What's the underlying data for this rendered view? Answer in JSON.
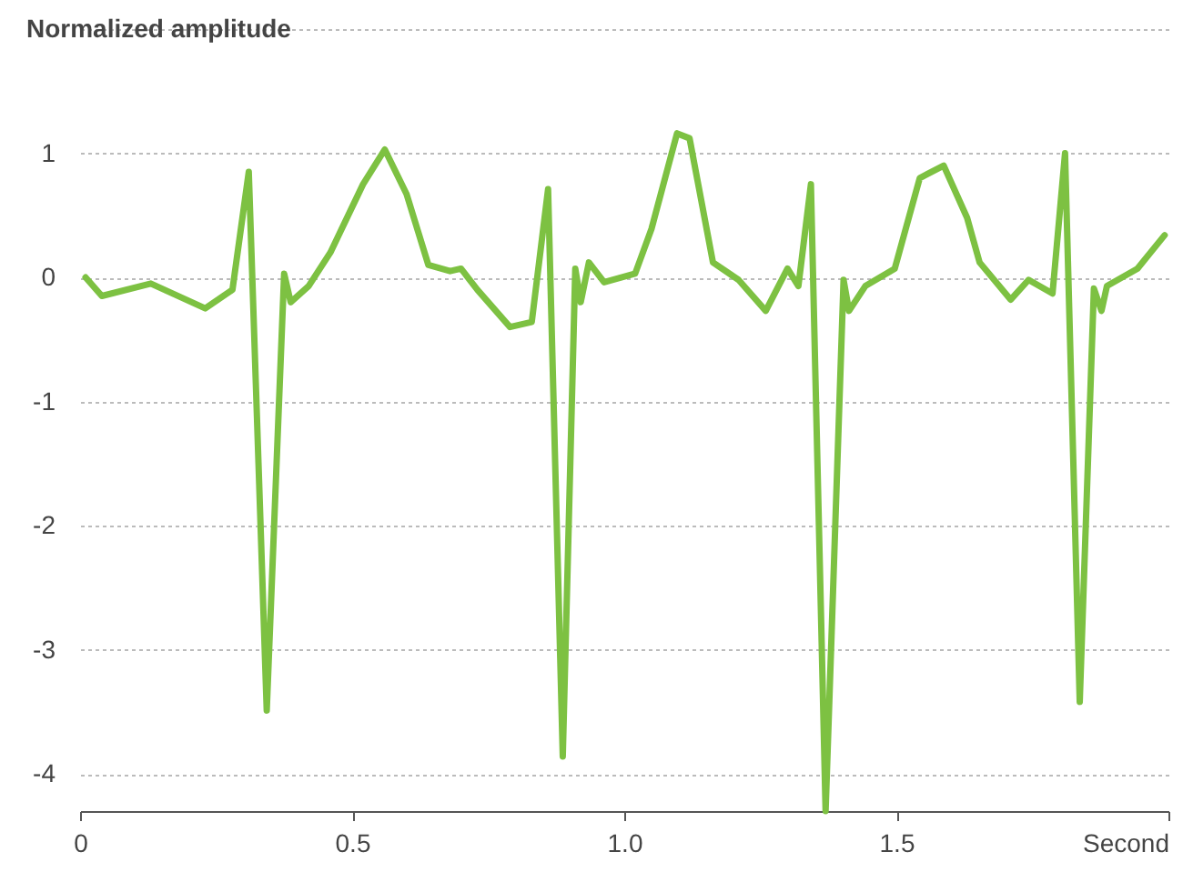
{
  "chart_data": {
    "type": "line",
    "ylabel": "Normalized amplitude",
    "x": [
      0.01,
      0.04,
      0.13,
      0.23,
      0.28,
      0.31,
      0.343,
      0.375,
      0.387,
      0.42,
      0.46,
      0.52,
      0.56,
      0.6,
      0.64,
      0.68,
      0.7,
      0.73,
      0.79,
      0.83,
      0.86,
      0.887,
      0.91,
      0.92,
      0.935,
      0.963,
      1.02,
      1.05,
      1.097,
      1.12,
      1.163,
      1.21,
      1.26,
      1.3,
      1.32,
      1.343,
      1.37,
      1.403,
      1.413,
      1.443,
      1.497,
      1.543,
      1.587,
      1.63,
      1.653,
      1.71,
      1.743,
      1.787,
      1.81,
      1.837,
      1.863,
      1.877,
      1.887,
      1.943,
      1.993
    ],
    "series": [
      {
        "color": "#7dc142",
        "values": [
          0,
          -0.15,
          -0.05,
          -0.25,
          -0.1,
          0.85,
          -3.49,
          0.03,
          -0.2,
          -0.07,
          0.2,
          0.75,
          1.03,
          0.67,
          0.1,
          0.05,
          0.07,
          -0.1,
          -0.4,
          -0.36,
          0.71,
          -3.86,
          0.07,
          -0.2,
          0.12,
          -0.04,
          0.03,
          0.39,
          1.16,
          1.12,
          0.12,
          -0.02,
          -0.27,
          0.07,
          -0.07,
          0.75,
          -4.3,
          -0.02,
          -0.27,
          -0.07,
          0.07,
          0.8,
          0.9,
          0.48,
          0.12,
          -0.18,
          -0.02,
          -0.13,
          1.0,
          -3.42,
          -0.09,
          -0.27,
          -0.07,
          0.07,
          0.34
        ]
      }
    ],
    "xlim": [
      0,
      2
    ],
    "xticks": [
      0,
      0.5,
      {
        "value": 1,
        "label": "1.0"
      },
      1.5,
      {
        "value": 2,
        "label": "Second"
      }
    ],
    "ylim": [
      -4.3,
      2
    ],
    "yticks": [
      -4,
      -3,
      -2,
      -1,
      0,
      1,
      {
        "value": 2,
        "label": null
      }
    ],
    "grid": "y",
    "marker": "none",
    "line_style": "solid"
  }
}
